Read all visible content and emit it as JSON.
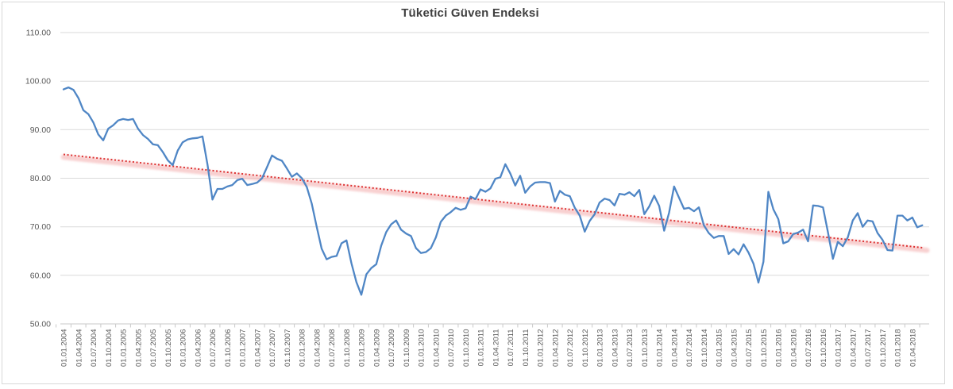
{
  "chart_data": {
    "type": "line",
    "title": "Tüketici Güven Endeksi",
    "xlabel": "",
    "ylabel": "",
    "ylim": [
      50,
      110
    ],
    "grid": true,
    "legend": "none",
    "y_tick_labels": [
      "50.00",
      "60.00",
      "70.00",
      "80.00",
      "90.00",
      "100.00",
      "110.00"
    ],
    "y_ticks": [
      50,
      60,
      70,
      80,
      90,
      100,
      110
    ],
    "x_tick_labels": [
      "01.01.2004",
      "01.04.2004",
      "01.07.2004",
      "01.10.2004",
      "01.01.2005",
      "01.04.2005",
      "01.07.2005",
      "01.10.2005",
      "01.01.2006",
      "01.04.2006",
      "01.07.2006",
      "01.10.2006",
      "01.01.2007",
      "01.04.2007",
      "01.07.2007",
      "01.10.2007",
      "01.01.2008",
      "01.04.2008",
      "01.07.2008",
      "01.10.2008",
      "01.01.2009",
      "01.04.2009",
      "01.07.2009",
      "01.10.2009",
      "01.01.2010",
      "01.04.2010",
      "01.07.2010",
      "01.10.2010",
      "01.01.2011",
      "01.04.2011",
      "01.07.2011",
      "01.10.2011",
      "01.01.2012",
      "01.04.2012",
      "01.07.2012",
      "01.10.2012",
      "01.01.2013",
      "01.04.2013",
      "01.07.2013",
      "01.10.2013",
      "01.01.2014",
      "01.04.2014",
      "01.07.2014",
      "01.10.2014",
      "01.01.2015",
      "01.04.2015",
      "01.07.2015",
      "01.10.2015",
      "01.01.2016",
      "01.04.2016",
      "01.07.2016",
      "01.10.2016",
      "01.01.2017",
      "01.04.2017",
      "01.07.2017",
      "01.10.2017",
      "01.01.2018",
      "01.04.2018"
    ],
    "points_per_label_interval": 3,
    "series": [
      {
        "name": "Tüketici Güven Endeksi",
        "color": "#4f86c5",
        "values": [
          98.3,
          98.7,
          98.2,
          96.5,
          94.0,
          93.2,
          91.5,
          89.0,
          87.8,
          90.2,
          90.9,
          91.9,
          92.2,
          92.0,
          92.2,
          90.2,
          88.9,
          88.1,
          87.0,
          86.8,
          85.4,
          83.7,
          82.7,
          85.7,
          87.4,
          88.0,
          88.2,
          88.3,
          88.6,
          82.8,
          75.6,
          77.8,
          77.8,
          78.3,
          78.6,
          79.6,
          79.9,
          78.6,
          78.8,
          79.1,
          80.0,
          82.3,
          84.7,
          84.0,
          83.6,
          82.0,
          80.3,
          81.0,
          80.0,
          78.2,
          74.8,
          70.0,
          65.5,
          63.3,
          63.8,
          64.0,
          66.6,
          67.2,
          62.5,
          58.6,
          56.0,
          60.2,
          61.5,
          62.3,
          66.1,
          68.9,
          70.5,
          71.3,
          69.4,
          68.6,
          68.1,
          65.6,
          64.6,
          64.8,
          65.6,
          67.8,
          71.0,
          72.3,
          73.0,
          73.9,
          73.5,
          73.8,
          76.2,
          75.7,
          77.7,
          77.2,
          77.9,
          79.9,
          80.2,
          82.9,
          81.0,
          78.5,
          80.5,
          77.0,
          78.3,
          79.1,
          79.2,
          79.2,
          79.0,
          75.2,
          77.4,
          76.6,
          76.3,
          73.9,
          72.3,
          69.0,
          71.2,
          72.6,
          75.0,
          75.8,
          75.5,
          74.4,
          76.8,
          76.6,
          77.1,
          76.3,
          77.6,
          72.6,
          74.2,
          76.4,
          74.3,
          69.2,
          72.9,
          78.3,
          76.0,
          73.7,
          73.9,
          73.2,
          74.0,
          70.3,
          68.7,
          67.7,
          68.1,
          68.1,
          64.4,
          65.4,
          64.3,
          66.4,
          64.7,
          62.4,
          58.5,
          62.8,
          77.2,
          73.6,
          71.6,
          66.6,
          67.0,
          68.5,
          68.8,
          69.4,
          67.0,
          74.4,
          74.3,
          74.0,
          68.9,
          63.4,
          66.9,
          66.0,
          67.8,
          71.3,
          72.8,
          70.0,
          71.3,
          71.1,
          68.7,
          67.3,
          65.2,
          65.1,
          72.3,
          72.3,
          71.3,
          71.9,
          69.9,
          70.3
        ]
      }
    ],
    "trendline": {
      "style": "dotted",
      "color": "#dd3333",
      "glow_color": "#f2aaaa",
      "start_value": 84.9,
      "end_value": 65.7
    },
    "colors": {
      "gridline": "#dadada",
      "axis_line": "#c9c9c9",
      "tick_label": "#595959",
      "title": "#3f3f3f",
      "border": "#d8d8d8"
    }
  }
}
